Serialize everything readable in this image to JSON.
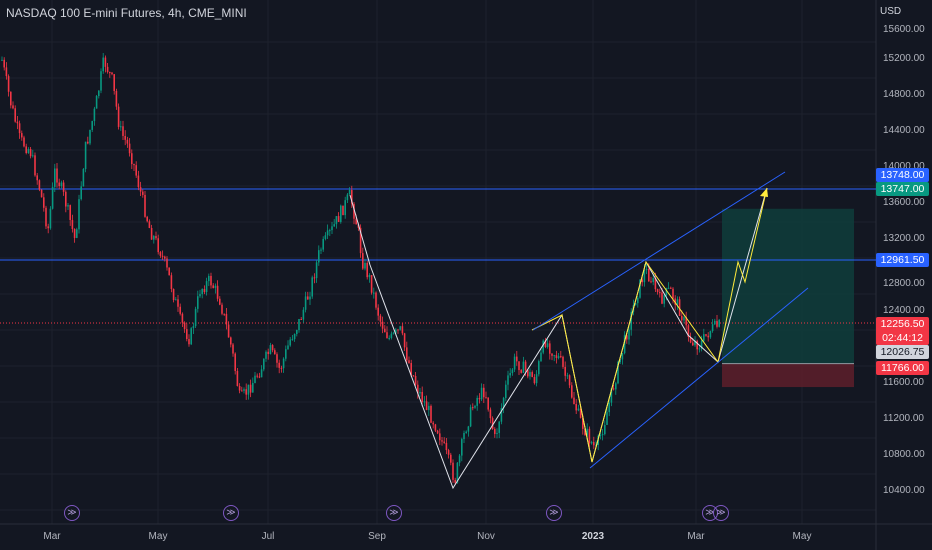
{
  "header": {
    "title": "NASDAQ 100 E-mini Futures, 4h, CME_MINI",
    "currency": "USD"
  },
  "price_axis": {
    "ticks": [
      "15600.00",
      "15200.00",
      "14800.00",
      "14400.00",
      "14000.00",
      "13600.00",
      "13200.00",
      "12800.00",
      "12400.00",
      "11600.00",
      "11200.00",
      "10800.00",
      "10400.00"
    ]
  },
  "time_axis": {
    "ticks": [
      {
        "label": "Mar",
        "bold": false
      },
      {
        "label": "May",
        "bold": false
      },
      {
        "label": "Jul",
        "bold": false
      },
      {
        "label": "Sep",
        "bold": false
      },
      {
        "label": "Nov",
        "bold": false
      },
      {
        "label": "2023",
        "bold": true
      },
      {
        "label": "Mar",
        "bold": false
      },
      {
        "label": "May",
        "bold": false
      }
    ]
  },
  "price_tags": {
    "target_upper": "13748.00",
    "target_lower": "13747.00",
    "level_resistance": "12961.50",
    "last_price": "12256.50",
    "countdown": "02:44:12",
    "entry": "12026.75",
    "stop": "11766.00"
  },
  "events": {
    "icon": "economic-event-icon",
    "count": 6
  },
  "colors": {
    "background": "#131722",
    "up": "#089981",
    "down": "#f23645",
    "horizontal_line": "#2962ff",
    "channel": "#2962ff",
    "white_pattern": "#e0e3eb",
    "yellow_pattern": "#ffeb3b",
    "profit_zone": "#0f3b3a",
    "loss_zone": "#5a1e2a"
  }
}
